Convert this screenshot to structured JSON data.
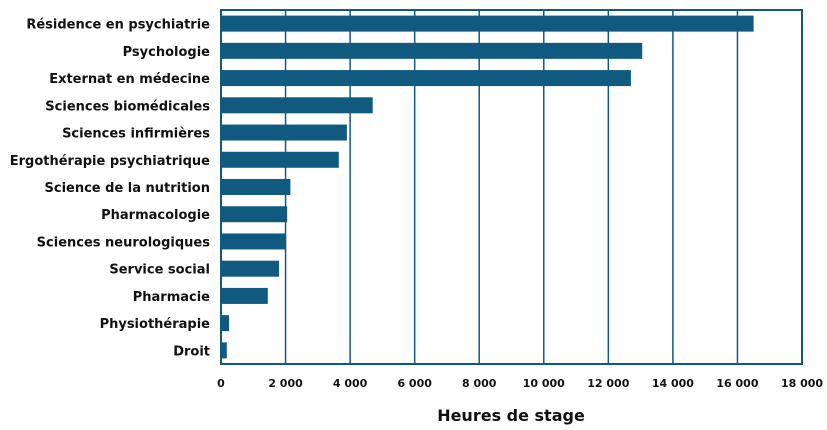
{
  "chart_data": {
    "type": "bar",
    "orientation": "horizontal",
    "categories": [
      "Résidence en psychiatrie",
      "Psychologie",
      "Externat en médecine",
      "Sciences biomédicales",
      "Sciences infirmières",
      "Ergothérapie psychiatrique",
      "Science de la nutrition",
      "Pharmacologie",
      "Sciences neurologiques",
      "Service social",
      "Pharmacie",
      "Physiothérapie",
      "Droit"
    ],
    "values": [
      16500,
      13050,
      12700,
      4700,
      3900,
      3650,
      2150,
      2050,
      2000,
      1800,
      1450,
      250,
      180
    ],
    "xlabel": "Heures de stage",
    "xlim": [
      0,
      18000
    ],
    "x_ticks": [
      0,
      2000,
      4000,
      6000,
      8000,
      10000,
      12000,
      14000,
      16000,
      18000
    ],
    "x_tick_labels": [
      "0",
      "2 000",
      "4 000",
      "6 000",
      "8 000",
      "10 000",
      "12 000",
      "14 000",
      "16 000",
      "18 000"
    ],
    "grid": "vertical",
    "colors": {
      "bar": "#0f5a7e",
      "grid": "#0f5a7e",
      "frame": "#0f5a7e"
    }
  }
}
